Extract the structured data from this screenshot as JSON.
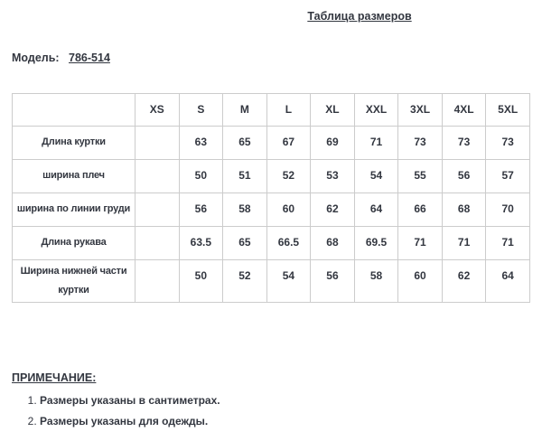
{
  "page": {
    "title": "Таблица размеров",
    "model_label": "Модель:",
    "model_value": "786-514"
  },
  "table": {
    "headers": [
      "",
      "XS",
      "S",
      "M",
      "L",
      "XL",
      "XXL",
      "3XL",
      "4XL",
      "5XL"
    ],
    "rows": [
      {
        "label": "Длина куртки",
        "values": [
          "",
          "63",
          "65",
          "67",
          "69",
          "71",
          "73",
          "73",
          "73"
        ]
      },
      {
        "label": "ширина плеч",
        "values": [
          "",
          "50",
          "51",
          "52",
          "53",
          "54",
          "55",
          "56",
          "57"
        ]
      },
      {
        "label": "ширина по линии груди",
        "values": [
          "",
          "56",
          "58",
          "60",
          "62",
          "64",
          "66",
          "68",
          "70"
        ]
      },
      {
        "label": "Длина рукава",
        "values": [
          "",
          "63.5",
          "65",
          "66.5",
          "68",
          "69.5",
          "71",
          "71",
          "71"
        ]
      },
      {
        "label": "Ширина нижней части куртки",
        "values": [
          "",
          "50",
          "52",
          "54",
          "56",
          "58",
          "60",
          "62",
          "64"
        ]
      }
    ]
  },
  "notes": {
    "heading": "ПРИМЕЧАНИЕ:",
    "items": [
      "Размеры указаны в сантиметрах.",
      "Размеры указаны для одежды."
    ]
  },
  "colors": {
    "text": "#333740",
    "border": "#cccccc",
    "background": "#ffffff"
  }
}
